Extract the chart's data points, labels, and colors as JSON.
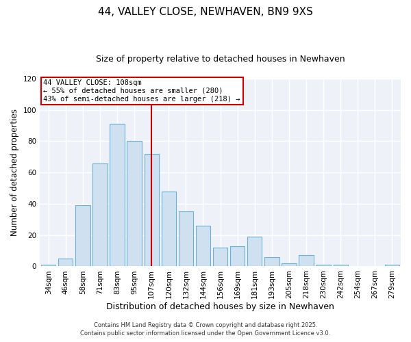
{
  "title": "44, VALLEY CLOSE, NEWHAVEN, BN9 9XS",
  "subtitle": "Size of property relative to detached houses in Newhaven",
  "xlabel": "Distribution of detached houses by size in Newhaven",
  "ylabel": "Number of detached properties",
  "bar_labels": [
    "34sqm",
    "46sqm",
    "58sqm",
    "71sqm",
    "83sqm",
    "95sqm",
    "107sqm",
    "120sqm",
    "132sqm",
    "144sqm",
    "156sqm",
    "169sqm",
    "181sqm",
    "193sqm",
    "205sqm",
    "218sqm",
    "230sqm",
    "242sqm",
    "254sqm",
    "267sqm",
    "279sqm"
  ],
  "bar_heights": [
    1,
    5,
    39,
    66,
    91,
    80,
    72,
    48,
    35,
    26,
    12,
    13,
    19,
    6,
    2,
    7,
    1,
    1,
    0,
    0,
    1
  ],
  "bar_color": "#cfe0f0",
  "bar_edge_color": "#6aafd6",
  "marker_label": "44 VALLEY CLOSE: 108sqm",
  "annotation_line1": "← 55% of detached houses are smaller (280)",
  "annotation_line2": "43% of semi-detached houses are larger (218) →",
  "vline_color": "#cc0000",
  "vline_x_index": 6,
  "ylim": [
    0,
    120
  ],
  "yticks": [
    0,
    20,
    40,
    60,
    80,
    100,
    120
  ],
  "bg_color": "#ffffff",
  "plot_bg_color": "#eef2f8",
  "grid_color": "#ffffff",
  "annotation_box_color": "#cc0000",
  "footnote1": "Contains HM Land Registry data © Crown copyright and database right 2025.",
  "footnote2": "Contains public sector information licensed under the Open Government Licence v3.0.",
  "title_fontsize": 11,
  "subtitle_fontsize": 9,
  "xlabel_fontsize": 9,
  "ylabel_fontsize": 8.5,
  "tick_fontsize": 7.5,
  "annot_fontsize": 7.5
}
